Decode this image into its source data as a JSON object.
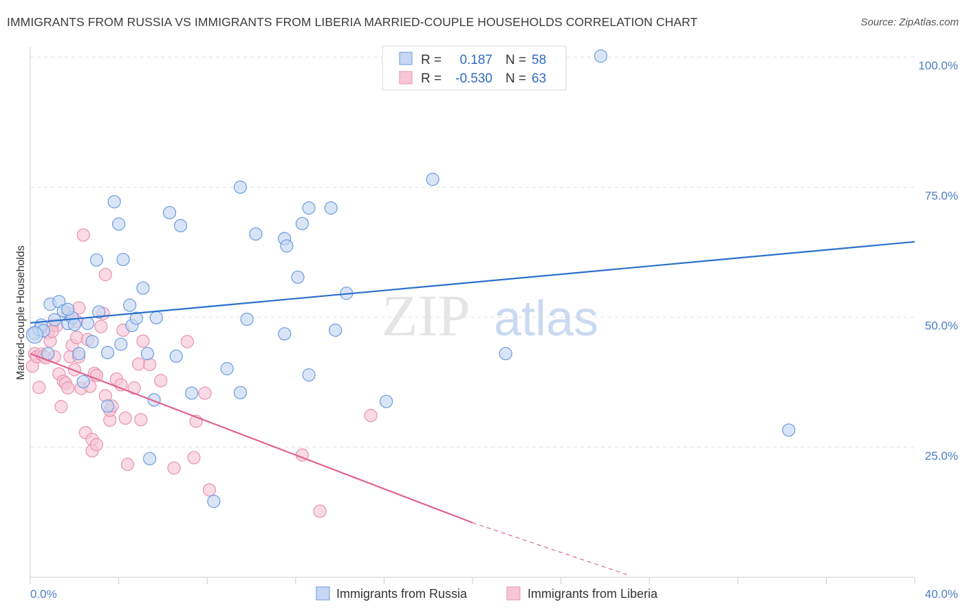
{
  "title": "IMMIGRANTS FROM RUSSIA VS IMMIGRANTS FROM LIBERIA MARRIED-COUPLE HOUSEHOLDS CORRELATION CHART",
  "source": "Source: ZipAtlas.com",
  "watermark": {
    "zip": "ZIP",
    "atlas": "atlas"
  },
  "colors": {
    "russia_fill": "#c5d7f2",
    "russia_stroke": "#6b9be0",
    "russia_line": "#2a6fcc",
    "liberia_fill": "#f7c6d6",
    "liberia_stroke": "#e891b0",
    "liberia_line": "#e0628f",
    "tick_text": "#4a7dc4",
    "grid": "#e0e0e0"
  },
  "legend": {
    "russia": {
      "r_label": "R =",
      "r_value": "0.187",
      "n_label": "N =",
      "n_value": "58"
    },
    "liberia": {
      "r_label": "R =",
      "r_value": "-0.530",
      "n_label": "N =",
      "n_value": "63"
    }
  },
  "chart_data": {
    "type": "scatter",
    "title": "IMMIGRANTS FROM RUSSIA VS IMMIGRANTS FROM LIBERIA MARRIED-COUPLE HOUSEHOLDS CORRELATION CHART",
    "xlabel": "",
    "ylabel": "Married-couple Households",
    "xlim": [
      0,
      40
    ],
    "ylim": [
      0,
      102
    ],
    "x_tick_labels": [
      "0.0%",
      "40.0%"
    ],
    "y_ticks": [
      25,
      50,
      75,
      100
    ],
    "y_tick_labels": [
      "25.0%",
      "50.0%",
      "75.0%",
      "100.0%"
    ],
    "grid": true,
    "legend_position": "top-center",
    "series": [
      {
        "name": "Immigrants from Russia",
        "trendline": {
          "x": [
            0,
            40
          ],
          "y": [
            48.9,
            64.5
          ],
          "dashed_from_x": null
        },
        "points": [
          [
            0.2,
            46.9
          ],
          [
            0.4,
            47.6
          ],
          [
            0.5,
            48.5
          ],
          [
            0.8,
            43.0
          ],
          [
            0.9,
            52.5
          ],
          [
            1.1,
            49.5
          ],
          [
            1.3,
            53.0
          ],
          [
            1.5,
            51.2
          ],
          [
            1.7,
            48.8
          ],
          [
            1.9,
            49.9
          ],
          [
            2.0,
            48.6
          ],
          [
            2.2,
            43.0
          ],
          [
            2.4,
            37.6
          ],
          [
            2.8,
            45.3
          ],
          [
            3.0,
            61.0
          ],
          [
            3.1,
            51.0
          ],
          [
            3.5,
            32.9
          ],
          [
            3.5,
            43.2
          ],
          [
            3.8,
            72.2
          ],
          [
            4.0,
            67.9
          ],
          [
            4.1,
            44.8
          ],
          [
            4.2,
            61.1
          ],
          [
            4.5,
            52.3
          ],
          [
            4.6,
            48.4
          ],
          [
            4.8,
            49.8
          ],
          [
            5.1,
            55.6
          ],
          [
            5.3,
            43.0
          ],
          [
            5.4,
            22.8
          ],
          [
            5.6,
            34.1
          ],
          [
            5.7,
            49.9
          ],
          [
            6.3,
            70.1
          ],
          [
            6.6,
            42.5
          ],
          [
            6.8,
            67.6
          ],
          [
            7.3,
            35.4
          ],
          [
            8.3,
            14.6
          ],
          [
            8.9,
            40.1
          ],
          [
            9.5,
            35.5
          ],
          [
            9.5,
            75.0
          ],
          [
            9.8,
            49.6
          ],
          [
            10.2,
            66.0
          ],
          [
            11.5,
            65.1
          ],
          [
            11.6,
            63.7
          ],
          [
            11.5,
            46.8
          ],
          [
            12.1,
            57.7
          ],
          [
            12.3,
            68.0
          ],
          [
            12.6,
            71.0
          ],
          [
            12.6,
            38.9
          ],
          [
            13.6,
            71.0
          ],
          [
            13.8,
            47.5
          ],
          [
            14.3,
            54.6
          ],
          [
            16.1,
            33.8
          ],
          [
            18.2,
            76.5
          ],
          [
            21.5,
            43.0
          ],
          [
            25.8,
            100.2
          ],
          [
            34.3,
            28.3
          ],
          [
            0.6,
            47.4
          ],
          [
            1.7,
            51.5
          ],
          [
            2.6,
            48.8
          ]
        ]
      },
      {
        "name": "Immigrants from Liberia",
        "trendline": {
          "x": [
            0,
            20,
            27
          ],
          "y": [
            43.0,
            10.5,
            0.5
          ],
          "dashed_from_x": 20
        },
        "points": [
          [
            0.1,
            40.6
          ],
          [
            0.2,
            43.0
          ],
          [
            0.3,
            42.4
          ],
          [
            0.4,
            36.5
          ],
          [
            0.5,
            42.9
          ],
          [
            0.6,
            42.5
          ],
          [
            0.7,
            42.2
          ],
          [
            0.8,
            47.0
          ],
          [
            0.9,
            45.4
          ],
          [
            1.0,
            48.4
          ],
          [
            1.1,
            42.4
          ],
          [
            1.2,
            48.4
          ],
          [
            1.3,
            39.1
          ],
          [
            1.4,
            32.8
          ],
          [
            1.5,
            37.7
          ],
          [
            1.6,
            37.3
          ],
          [
            1.7,
            50.8
          ],
          [
            1.7,
            36.4
          ],
          [
            1.8,
            42.4
          ],
          [
            1.9,
            44.6
          ],
          [
            2.0,
            39.9
          ],
          [
            2.1,
            46.1
          ],
          [
            2.2,
            51.8
          ],
          [
            2.2,
            42.4
          ],
          [
            2.3,
            36.3
          ],
          [
            2.4,
            65.8
          ],
          [
            2.5,
            27.8
          ],
          [
            2.6,
            45.7
          ],
          [
            2.7,
            36.7
          ],
          [
            2.8,
            26.5
          ],
          [
            2.8,
            24.3
          ],
          [
            2.9,
            39.2
          ],
          [
            3.0,
            25.5
          ],
          [
            3.0,
            38.8
          ],
          [
            3.2,
            48.2
          ],
          [
            3.3,
            50.7
          ],
          [
            3.4,
            58.2
          ],
          [
            3.4,
            34.9
          ],
          [
            3.6,
            30.2
          ],
          [
            3.6,
            32.1
          ],
          [
            3.7,
            32.9
          ],
          [
            3.9,
            38.1
          ],
          [
            4.1,
            37.0
          ],
          [
            4.2,
            47.5
          ],
          [
            4.3,
            30.6
          ],
          [
            4.4,
            21.7
          ],
          [
            4.7,
            36.4
          ],
          [
            4.9,
            41.0
          ],
          [
            5.0,
            30.3
          ],
          [
            5.1,
            45.4
          ],
          [
            5.4,
            40.9
          ],
          [
            5.9,
            37.8
          ],
          [
            6.5,
            21.0
          ],
          [
            7.1,
            45.3
          ],
          [
            7.4,
            23.0
          ],
          [
            7.5,
            30.0
          ],
          [
            7.9,
            35.4
          ],
          [
            8.1,
            16.8
          ],
          [
            12.3,
            23.5
          ],
          [
            13.1,
            12.7
          ],
          [
            15.4,
            31.1
          ],
          [
            2.1,
            49.2
          ],
          [
            1.0,
            47.3
          ]
        ]
      }
    ]
  }
}
